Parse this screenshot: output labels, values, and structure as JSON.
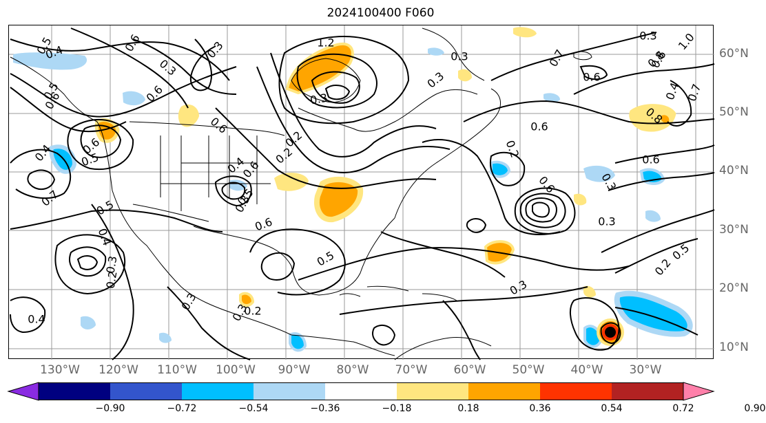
{
  "title": "2024100400 F060",
  "map": {
    "lon_labels": [
      "130°W",
      "120°W",
      "110°W",
      "100°W",
      "90°W",
      "80°W",
      "70°W",
      "60°W",
      "50°W",
      "40°W",
      "30°W"
    ],
    "lat_labels": [
      "60°N",
      "50°N",
      "40°N",
      "30°N",
      "20°N",
      "10°N"
    ],
    "contour_labels": [
      "0.5",
      "0.4",
      "0.6",
      "0.5",
      "0.6",
      "0.3",
      "0.3",
      "0.6",
      "1.2",
      "0.3",
      "0.3",
      "0.3",
      "0.3",
      "0.6",
      "1.0",
      "0.8",
      "0.7",
      "0.6",
      "0.4",
      "0.7",
      "0.8",
      "0.6",
      "0.6",
      "0.5",
      "0.4",
      "0.7",
      "0.5",
      "0.4",
      "0.6",
      "0.2",
      "0.2",
      "0.3",
      "0.5",
      "0.6",
      "0.5",
      "0.4",
      "0.3",
      "0.2",
      "0.4",
      "0.3",
      "0.3",
      "0.2",
      "0.3",
      "0.2",
      "0.5",
      "0.6",
      "0.3",
      "0.3",
      "0.6",
      "0.2",
      "0.6"
    ]
  },
  "colorbar": {
    "colors": [
      "#8a2be2",
      "#000080",
      "#3355cc",
      "#00bfff",
      "#add8f5",
      "#ffffff",
      "#ffe680",
      "#ffa500",
      "#ff3300",
      "#b22222",
      "#ff80aa"
    ],
    "tick_labels": [
      "−0.90",
      "−0.72",
      "−0.54",
      "−0.36",
      "−0.18",
      "0.18",
      "0.36",
      "0.54",
      "0.72",
      "0.90"
    ]
  }
}
